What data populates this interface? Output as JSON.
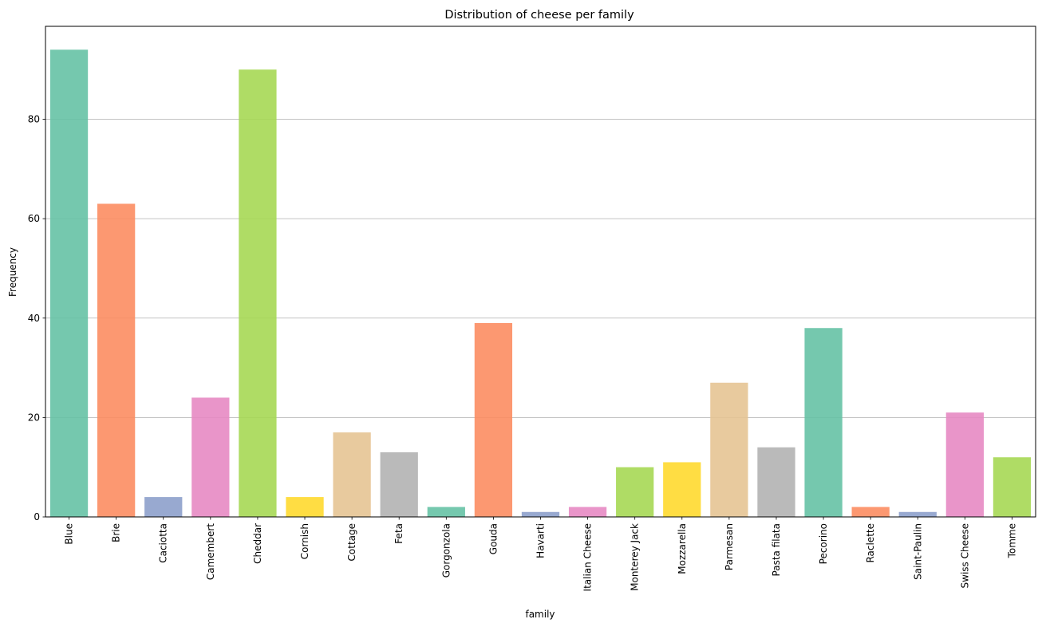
{
  "chart_data": {
    "type": "bar",
    "title": "Distribution of cheese per family",
    "xlabel": "family",
    "ylabel": "Frequency",
    "categories": [
      "Blue",
      "Brie",
      "Caciotta",
      "Camembert",
      "Cheddar",
      "Cornish",
      "Cottage",
      "Feta",
      "Gorgonzola",
      "Gouda",
      "Havarti",
      "Italian Cheese",
      "Monterey Jack",
      "Mozzarella",
      "Parmesan",
      "Pasta filata",
      "Pecorino",
      "Raclette",
      "Saint-Paulin",
      "Swiss Cheese",
      "Tomme"
    ],
    "values": [
      94,
      63,
      4,
      24,
      90,
      4,
      17,
      13,
      2,
      39,
      1,
      2,
      10,
      11,
      27,
      14,
      38,
      2,
      1,
      21,
      12
    ],
    "colors": [
      "#66c2a5",
      "#fc8d62",
      "#8da0cb",
      "#e78ac3",
      "#a6d854",
      "#ffd92f",
      "#e5c494",
      "#b3b3b3"
    ],
    "bar_alpha": 0.9,
    "ylim": [
      0,
      98.7
    ],
    "yticks": [
      0,
      20,
      40,
      60,
      80
    ],
    "grid": "y-axis only",
    "legend": "none"
  }
}
